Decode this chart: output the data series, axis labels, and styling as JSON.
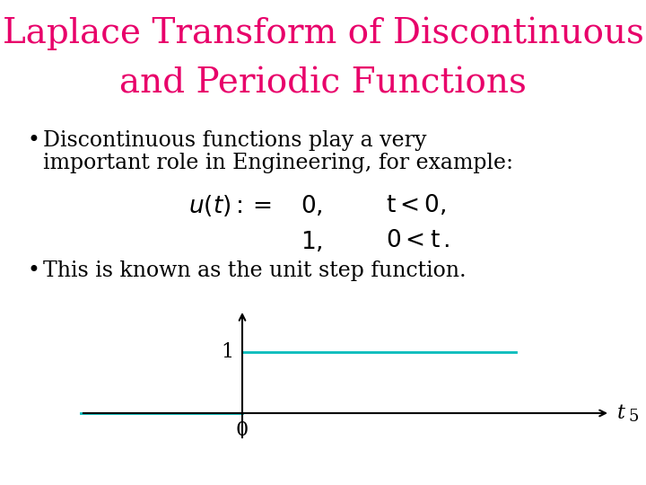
{
  "title_line1": "Laplace Transform of Discontinuous",
  "title_line2": "and Periodic Functions",
  "title_color": "#E8006A",
  "title_fontsize": 28,
  "bullet1_line1": "Discontinuous functions play a very",
  "bullet1_line2": "important role in Engineering, for example:",
  "bullet2": "This is known as the unit step function.",
  "bullet_fontsize": 17,
  "math_fontsize": 19,
  "background_color": "#FFFFFF",
  "graph_line_color": "#00BBBB",
  "axis_color": "#000000",
  "label_t": "t",
  "label_0": "0",
  "label_1": "1",
  "label_5": "5"
}
